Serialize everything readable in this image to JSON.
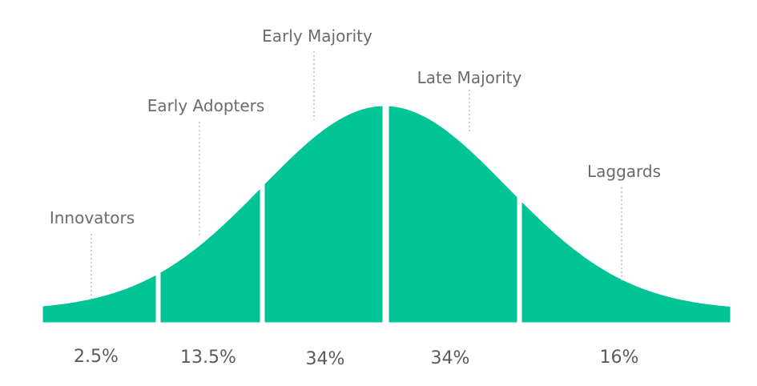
{
  "curve_color": "#00c396",
  "segments": [
    {
      "name": "Innovators",
      "percent": "2.5%"
    },
    {
      "name": "Early Adopters",
      "percent": "13.5%"
    },
    {
      "name": "Early Majority",
      "percent": "34%"
    },
    {
      "name": "Late Majority",
      "percent": "34%"
    },
    {
      "name": "Laggards",
      "percent": "16%"
    }
  ]
}
